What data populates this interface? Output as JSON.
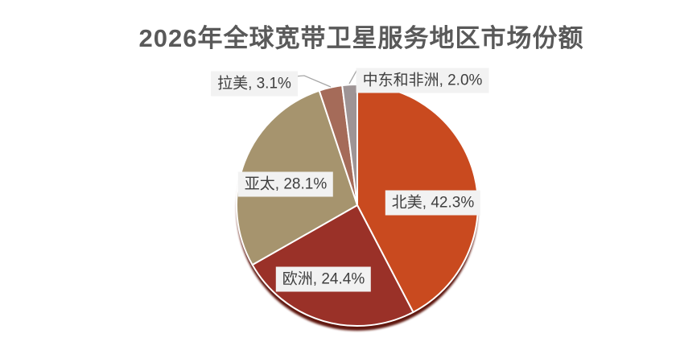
{
  "chart_data": {
    "type": "pie",
    "title": "2026年全球宽带卫星服务地区市场份额",
    "slices": [
      {
        "label": "北美",
        "value": 42.3,
        "color": "#C94A1F"
      },
      {
        "label": "欧洲",
        "value": 24.4,
        "color": "#9A3128"
      },
      {
        "label": "亚太",
        "value": 28.1,
        "color": "#A6946E"
      },
      {
        "label": "拉美",
        "value": 3.1,
        "color": "#A56B59"
      },
      {
        "label": "中东和非洲",
        "value": 2.0,
        "color": "#9E9495"
      }
    ],
    "start_angle_deg": 0,
    "direction": "clockwise",
    "label_format": "{label}, {value}%",
    "legend": "none",
    "background_color": "#FFFFFF",
    "title_color": "#595959",
    "label_bg_color": "#F2F2F2",
    "label_text_color": "#3F3F3F",
    "leader_line_color": "#A6A6A6",
    "slice_border_color": "#FFFFFF",
    "shadow_color": "#5E150F"
  }
}
